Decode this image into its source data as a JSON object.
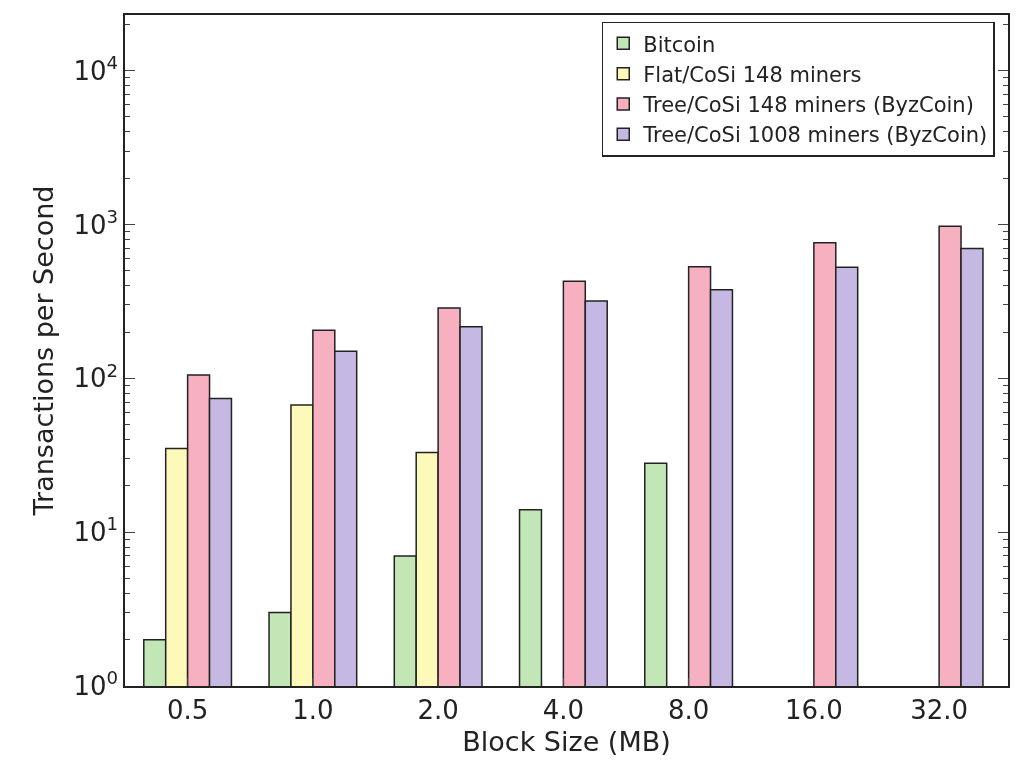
{
  "chart_data": {
    "type": "bar",
    "xlabel": "Block Size (MB)",
    "ylabel": "Transactions per Second",
    "categories": [
      "0.5",
      "1.0",
      "2.0",
      "4.0",
      "8.0",
      "16.0",
      "32.0"
    ],
    "series": [
      {
        "name": "Bitcoin",
        "color": "#c2e6b6",
        "values": [
          2,
          3,
          7,
          14,
          28,
          null,
          null
        ]
      },
      {
        "name": "Flat/CoSi 148 miners",
        "color": "#fdf9b8",
        "values": [
          35,
          67,
          33,
          null,
          null,
          null,
          null
        ]
      },
      {
        "name": "Tree/CoSi 148 miners (ByzCoin)",
        "color": "#f6b0bf",
        "values": [
          105,
          205,
          286,
          428,
          532,
          760,
          975
        ]
      },
      {
        "name": "Tree/CoSi 1008 miners (ByzCoin)",
        "color": "#c5b8e3",
        "values": [
          74,
          150,
          216,
          318,
          376,
          527,
          698
        ]
      }
    ],
    "log": "y",
    "ylim": [
      1,
      23000
    ],
    "yticks": [
      {
        "value": 1,
        "label": "10$^{0}$"
      },
      {
        "value": 10,
        "label": "10$^{1}$"
      },
      {
        "value": 100,
        "label": "10$^{2}$"
      },
      {
        "value": 1000,
        "label": "10$^{3}$"
      },
      {
        "value": 10000,
        "label": "10$^{4}$"
      }
    ],
    "legend": "top right"
  }
}
